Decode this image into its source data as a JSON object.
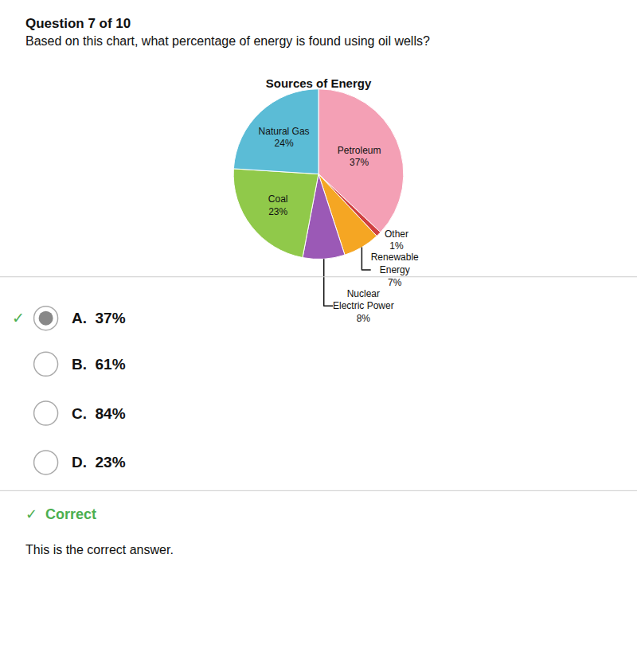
{
  "chart_data": {
    "type": "pie",
    "title": "Sources of Energy",
    "categories": [
      "Petroleum",
      "Other",
      "Renewable\nEnergy",
      "Nuclear\nElectric Power",
      "Coal",
      "Natural Gas"
    ],
    "values": [
      37,
      1,
      7,
      8,
      23,
      24
    ],
    "value_labels": [
      "Petroleum\n37%",
      "Other\n1%",
      "Renewable\nEnergy\n7%",
      "Nuclear\nElectric Power\n8%",
      "Coal\n23%",
      "Natural Gas\n24%"
    ],
    "colors": [
      "#F4A0B5",
      "#D04040",
      "#F5A623",
      "#9B59B6",
      "#90C94A",
      "#5BBCD6"
    ],
    "data_labels": true,
    "legend": false,
    "annotations": [
      {
        "text": "Question 7 of 10"
      },
      {
        "text": "Based on this chart, what percentage of energy is found using oil wells?"
      },
      {
        "text": "A.  37%"
      },
      {
        "text": "B.  61%"
      },
      {
        "text": "C.  84%"
      },
      {
        "text": "D.  23%"
      },
      {
        "text": "✓",
        "color": "#4CAF50"
      },
      {
        "text": "✓  Correct",
        "color": "#4CAF50"
      },
      {
        "text": "This is the correct answer."
      }
    ]
  }
}
